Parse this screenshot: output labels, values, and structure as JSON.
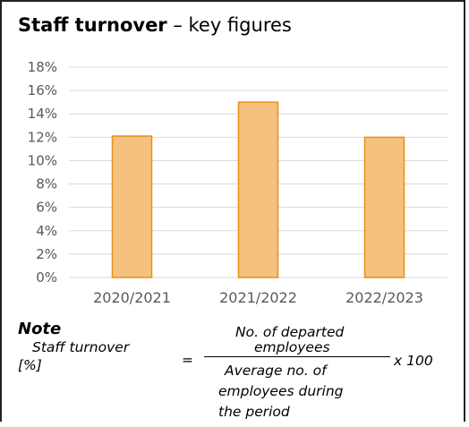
{
  "title_bold": "Staff turnover",
  "title_rest": " – key figures",
  "chart_data": {
    "type": "bar",
    "categories": [
      "2020/2021",
      "2021/2022",
      "2022/2023"
    ],
    "values": [
      12.1,
      15.0,
      12.0
    ],
    "ylim": [
      0,
      18
    ],
    "yticks": [
      0,
      2,
      4,
      6,
      8,
      10,
      12,
      14,
      16,
      18
    ],
    "ytick_suffix": "%",
    "grid": true,
    "bar_fill": "#f4c17f",
    "bar_stroke": "#e8901a"
  },
  "note": {
    "heading": "Note",
    "lhs_line1": "Staff turnover",
    "lhs_line2": "[%]",
    "equals": "=",
    "numerator_line1": "No. of departed",
    "numerator_line2": "employees",
    "denominator_line1": "Average no. of",
    "denominator_line2": "employees during",
    "denominator_line3": "the period",
    "multiplier": "x 100"
  }
}
